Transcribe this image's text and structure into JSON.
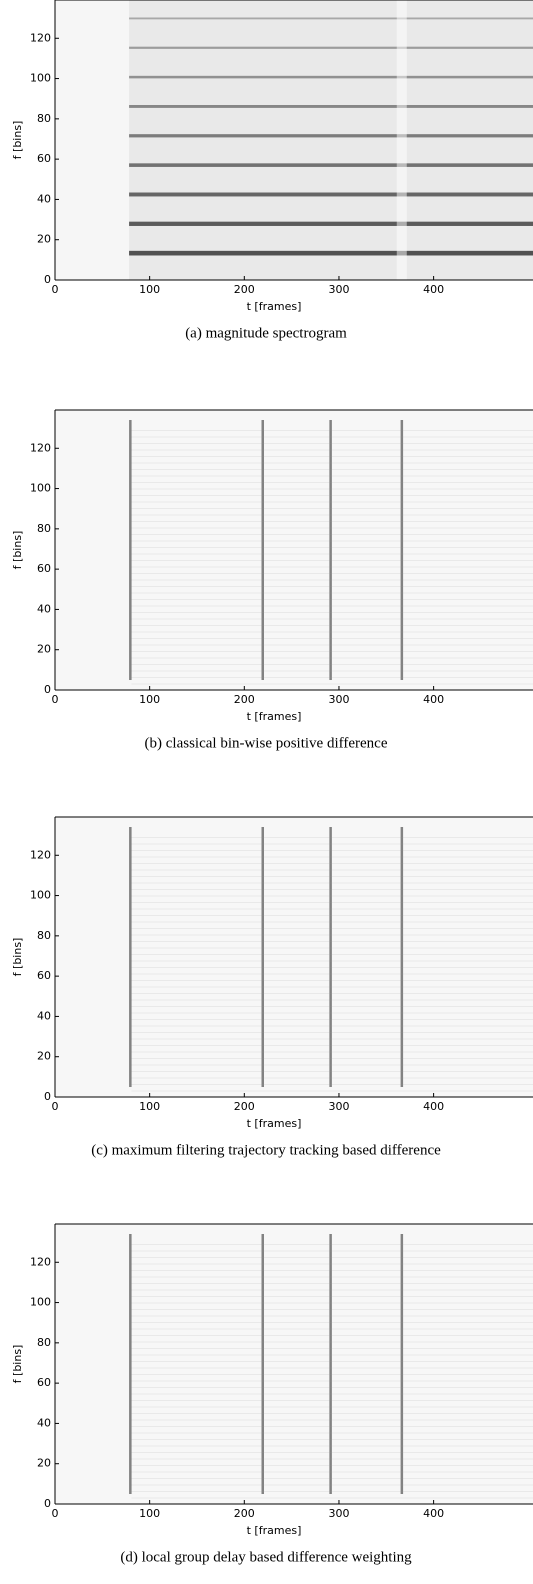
{
  "chart_data": [
    {
      "type": "spectrogram",
      "caption": "(a) magnitude spectrogram",
      "xlabel": "t [frames]",
      "ylabel": "f [bins]",
      "xlim": [
        0,
        505
      ],
      "ylim": [
        0,
        139
      ],
      "xticks": [
        0,
        100,
        200,
        300,
        400
      ],
      "yticks": [
        0,
        20,
        40,
        60,
        80,
        100,
        120
      ]
    },
    {
      "type": "spectrogram",
      "caption": "(b) classical bin-wise positive difference",
      "xlabel": "t [frames]",
      "ylabel": "f [bins]",
      "xlim": [
        0,
        505
      ],
      "ylim": [
        0,
        139
      ],
      "xticks": [
        0,
        100,
        200,
        300,
        400
      ],
      "yticks": [
        0,
        20,
        40,
        60,
        80,
        100,
        120
      ]
    },
    {
      "type": "spectrogram",
      "caption": "(c) maximum filtering trajectory tracking based difference",
      "xlabel": "t [frames]",
      "ylabel": "f [bins]",
      "xlim": [
        0,
        505
      ],
      "ylim": [
        0,
        139
      ],
      "xticks": [
        0,
        100,
        200,
        300,
        400
      ],
      "yticks": [
        0,
        20,
        40,
        60,
        80,
        100,
        120
      ]
    },
    {
      "type": "spectrogram",
      "caption": "(d) local group delay based difference weighting",
      "xlabel": "t [frames]",
      "ylabel": "f [bins]",
      "xlim": [
        0,
        505
      ],
      "ylim": [
        0,
        139
      ],
      "xticks": [
        0,
        100,
        200,
        300,
        400
      ],
      "yticks": [
        0,
        20,
        40,
        60,
        80,
        100,
        120
      ]
    }
  ]
}
